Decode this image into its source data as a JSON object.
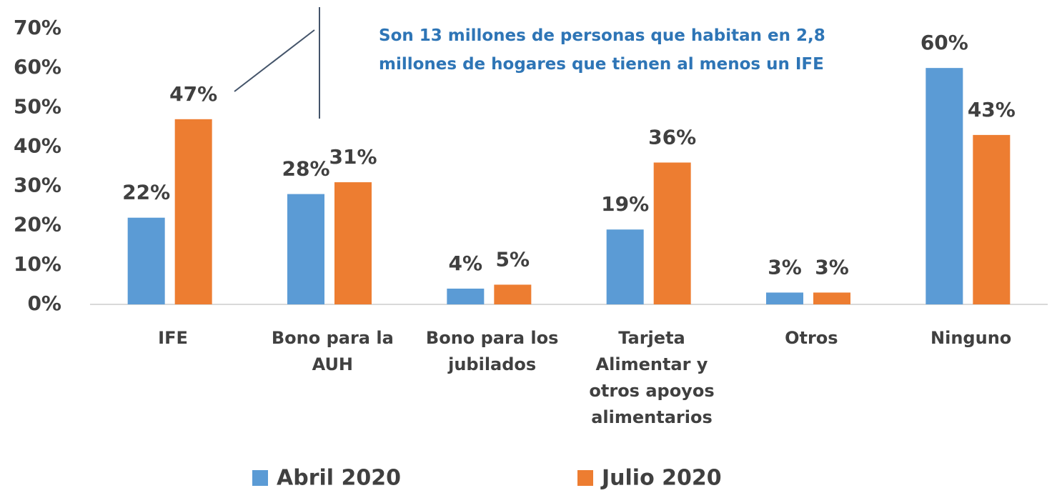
{
  "chart_data": {
    "type": "bar",
    "annotation": "Son 13 millones de personas que habitan en 2,8\nmillones de hogares que tienen al menos un IFE",
    "categories": [
      "IFE",
      "Bono para la\nAUH",
      "Bono para los\njubilados",
      "Tarjeta\nAlimentar y\notros apoyos\nalimentarios",
      "Otros",
      "Ninguno"
    ],
    "series": [
      {
        "name": "Abril 2020",
        "color": "#5b9bd5",
        "values": [
          22,
          28,
          4,
          19,
          3,
          60
        ],
        "value_labels": [
          "22%",
          "28%",
          "4%",
          "19%",
          "3%",
          "60%"
        ]
      },
      {
        "name": "Julio 2020",
        "color": "#ed7d31",
        "values": [
          47,
          31,
          5,
          36,
          3,
          43
        ],
        "value_labels": [
          "47%",
          "31%",
          "5%",
          "36%",
          "3%",
          "43%"
        ]
      }
    ],
    "ylim": [
      0,
      70
    ],
    "yticks": [
      {
        "value": 0,
        "label": "0%"
      },
      {
        "value": 10,
        "label": "10%"
      },
      {
        "value": 20,
        "label": "20%"
      },
      {
        "value": 30,
        "label": "30%"
      },
      {
        "value": 40,
        "label": "40%"
      },
      {
        "value": 50,
        "label": "50%"
      },
      {
        "value": 60,
        "label": "60%"
      },
      {
        "value": 70,
        "label": "70%"
      }
    ],
    "grid": false,
    "legend": "bottom"
  }
}
